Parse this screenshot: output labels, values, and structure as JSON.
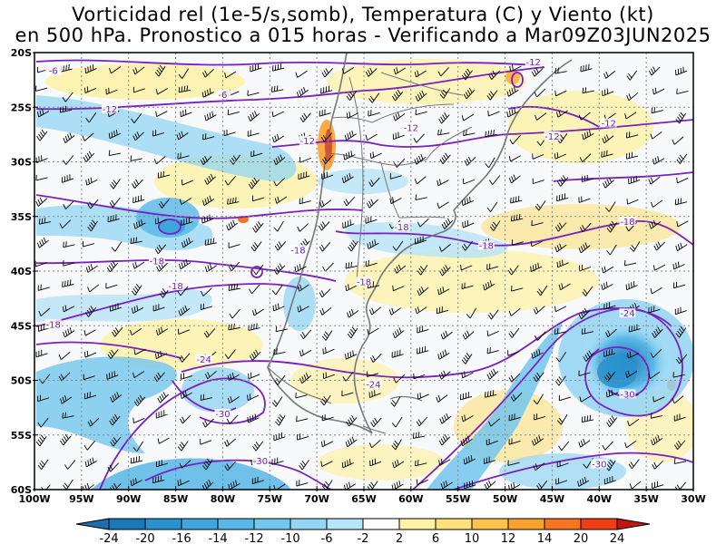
{
  "title": {
    "line1": "Vorticidad rel (1e-5/s,somb), Temperatura (C) y Viento (kt)",
    "line2": "en 500 hPa. Pronostico a 015 horas - Verificando a Mar09Z03JUN2025"
  },
  "map": {
    "lat_labels": [
      "20S",
      "25S",
      "30S",
      "35S",
      "40S",
      "45S",
      "50S",
      "55S",
      "60S"
    ],
    "lon_labels": [
      "100W",
      "95W",
      "90W",
      "85W",
      "80W",
      "75W",
      "70W",
      "65W",
      "60W",
      "55W",
      "50W",
      "45W",
      "40W",
      "35W",
      "30W"
    ],
    "temperature_labels": [
      {
        "text": "-6",
        "lon": -98,
        "lat": -21.8
      },
      {
        "text": "-6",
        "lon": -80,
        "lat": -24.0
      },
      {
        "text": "-12",
        "lon": -92,
        "lat": -25.3
      },
      {
        "text": "-12",
        "lon": -71,
        "lat": -28.2
      },
      {
        "text": "-12",
        "lon": -60,
        "lat": -27.0
      },
      {
        "text": "-12",
        "lon": -47,
        "lat": -21.0
      },
      {
        "text": "-12",
        "lon": -45,
        "lat": -27.8
      },
      {
        "text": "-12",
        "lon": -39,
        "lat": -26.6
      },
      {
        "text": "-18",
        "lon": -72,
        "lat": -38.2
      },
      {
        "text": "-18",
        "lon": -87,
        "lat": -39.2
      },
      {
        "text": "-18",
        "lon": -85,
        "lat": -41.5
      },
      {
        "text": "-18",
        "lon": -98,
        "lat": -45.0
      },
      {
        "text": "-18",
        "lon": -65,
        "lat": -41.1
      },
      {
        "text": "-18",
        "lon": -61,
        "lat": -36.1
      },
      {
        "text": "-18",
        "lon": -52,
        "lat": -37.8
      },
      {
        "text": "-18",
        "lon": -37,
        "lat": -35.6
      },
      {
        "text": "-24",
        "lon": -82,
        "lat": -48.2
      },
      {
        "text": "-24",
        "lon": -64,
        "lat": -50.5
      },
      {
        "text": "-24",
        "lon": -37,
        "lat": -44.0
      },
      {
        "text": "-30",
        "lon": -80,
        "lat": -53.2
      },
      {
        "text": "-30",
        "lon": -76,
        "lat": -57.5
      },
      {
        "text": "-30",
        "lon": -37,
        "lat": -51.4
      },
      {
        "text": "-30",
        "lon": -40,
        "lat": -57.8
      }
    ]
  },
  "colorbar": {
    "labels": [
      "-24",
      "-20",
      "-16",
      "-14",
      "-12",
      "-10",
      "-6",
      "-2",
      "2",
      "6",
      "10",
      "12",
      "14",
      "20",
      "24"
    ],
    "colors": [
      "#1a78b8",
      "#2a92cf",
      "#3ea6dd",
      "#57b7e6",
      "#73c6ee",
      "#93d5f3",
      "#b6e4f8",
      "#ffffff",
      "#fdf2a6",
      "#fde07a",
      "#fdc24e",
      "#fba22e",
      "#f77520",
      "#ef3d16"
    ],
    "end_low": "#1a6fb0",
    "end_high": "#c4150f"
  },
  "colors": {
    "isotherm": "#7a1fc0",
    "coast": "#777777",
    "barb": "#000000",
    "grid": "#888888"
  }
}
